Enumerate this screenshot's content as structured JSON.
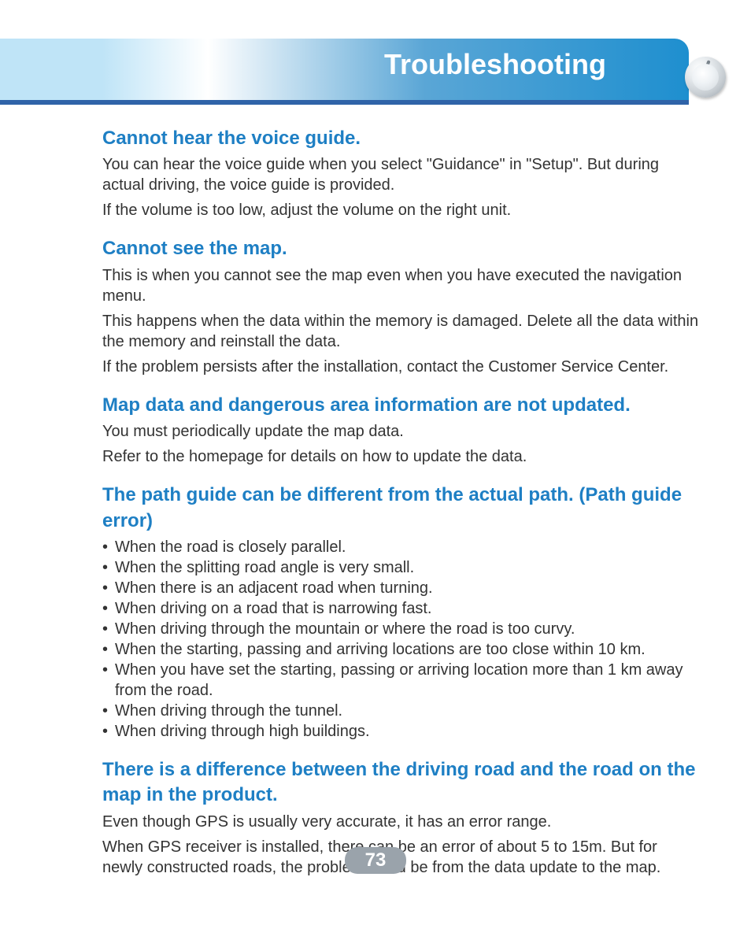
{
  "header": {
    "title": "Troubleshooting",
    "colors": {
      "title_text": "#ffffff",
      "underline": "#2f63a8",
      "left_block": "#bfe4f7",
      "gradient_end": "#1e8fcf"
    }
  },
  "page_number": "73",
  "sections": [
    {
      "title": "Cannot hear the voice guide.",
      "paragraphs": [
        "You can hear the voice guide when you select \"Guidance\" in \"Setup\". But during actual driving, the voice guide is provided.",
        "If the volume is too low, adjust the volume on the right unit."
      ]
    },
    {
      "title": "Cannot see the map.",
      "paragraphs": [
        "This is when you cannot see the map even when you have executed the navigation menu.",
        "This happens when the data within the memory is damaged. Delete all the data within the memory and reinstall the data.",
        "If the problem persists after the installation, contact the Customer Service Center."
      ]
    },
    {
      "title": "Map data and dangerous area information are not updated.",
      "paragraphs": [
        "You must periodically update the map data.",
        "Refer to the homepage for details on how to update the data."
      ]
    },
    {
      "title": "The path guide can be different from the actual path. (Path guide error)",
      "bullets": [
        "When the road is closely parallel.",
        "When the splitting road angle is very small.",
        "When there is an adjacent road when turning.",
        "When driving on a road that is narrowing fast.",
        "When driving through the mountain or where the road is too curvy.",
        "When the starting, passing and arriving locations are too close within 10 km.",
        "When you have set the starting, passing or arriving location more than 1 km away from the road.",
        "When driving through the tunnel.",
        "When driving through high buildings."
      ]
    },
    {
      "title": "There is a difference between the driving road and the road on the map in the product.",
      "paragraphs": [
        "Even though GPS is usually very accurate, it has an error range.",
        "When GPS receiver is installed, there can be an error of about 5 to 15m. But for newly constructed roads, the problem could be from the data update to the map."
      ]
    }
  ],
  "styling": {
    "section_title_color": "#1e7fc4",
    "section_title_fontsize": 24,
    "body_color": "#333333",
    "body_fontsize": 20,
    "page_number_bg": "#9aa3ab",
    "page_number_color": "#ffffff"
  }
}
